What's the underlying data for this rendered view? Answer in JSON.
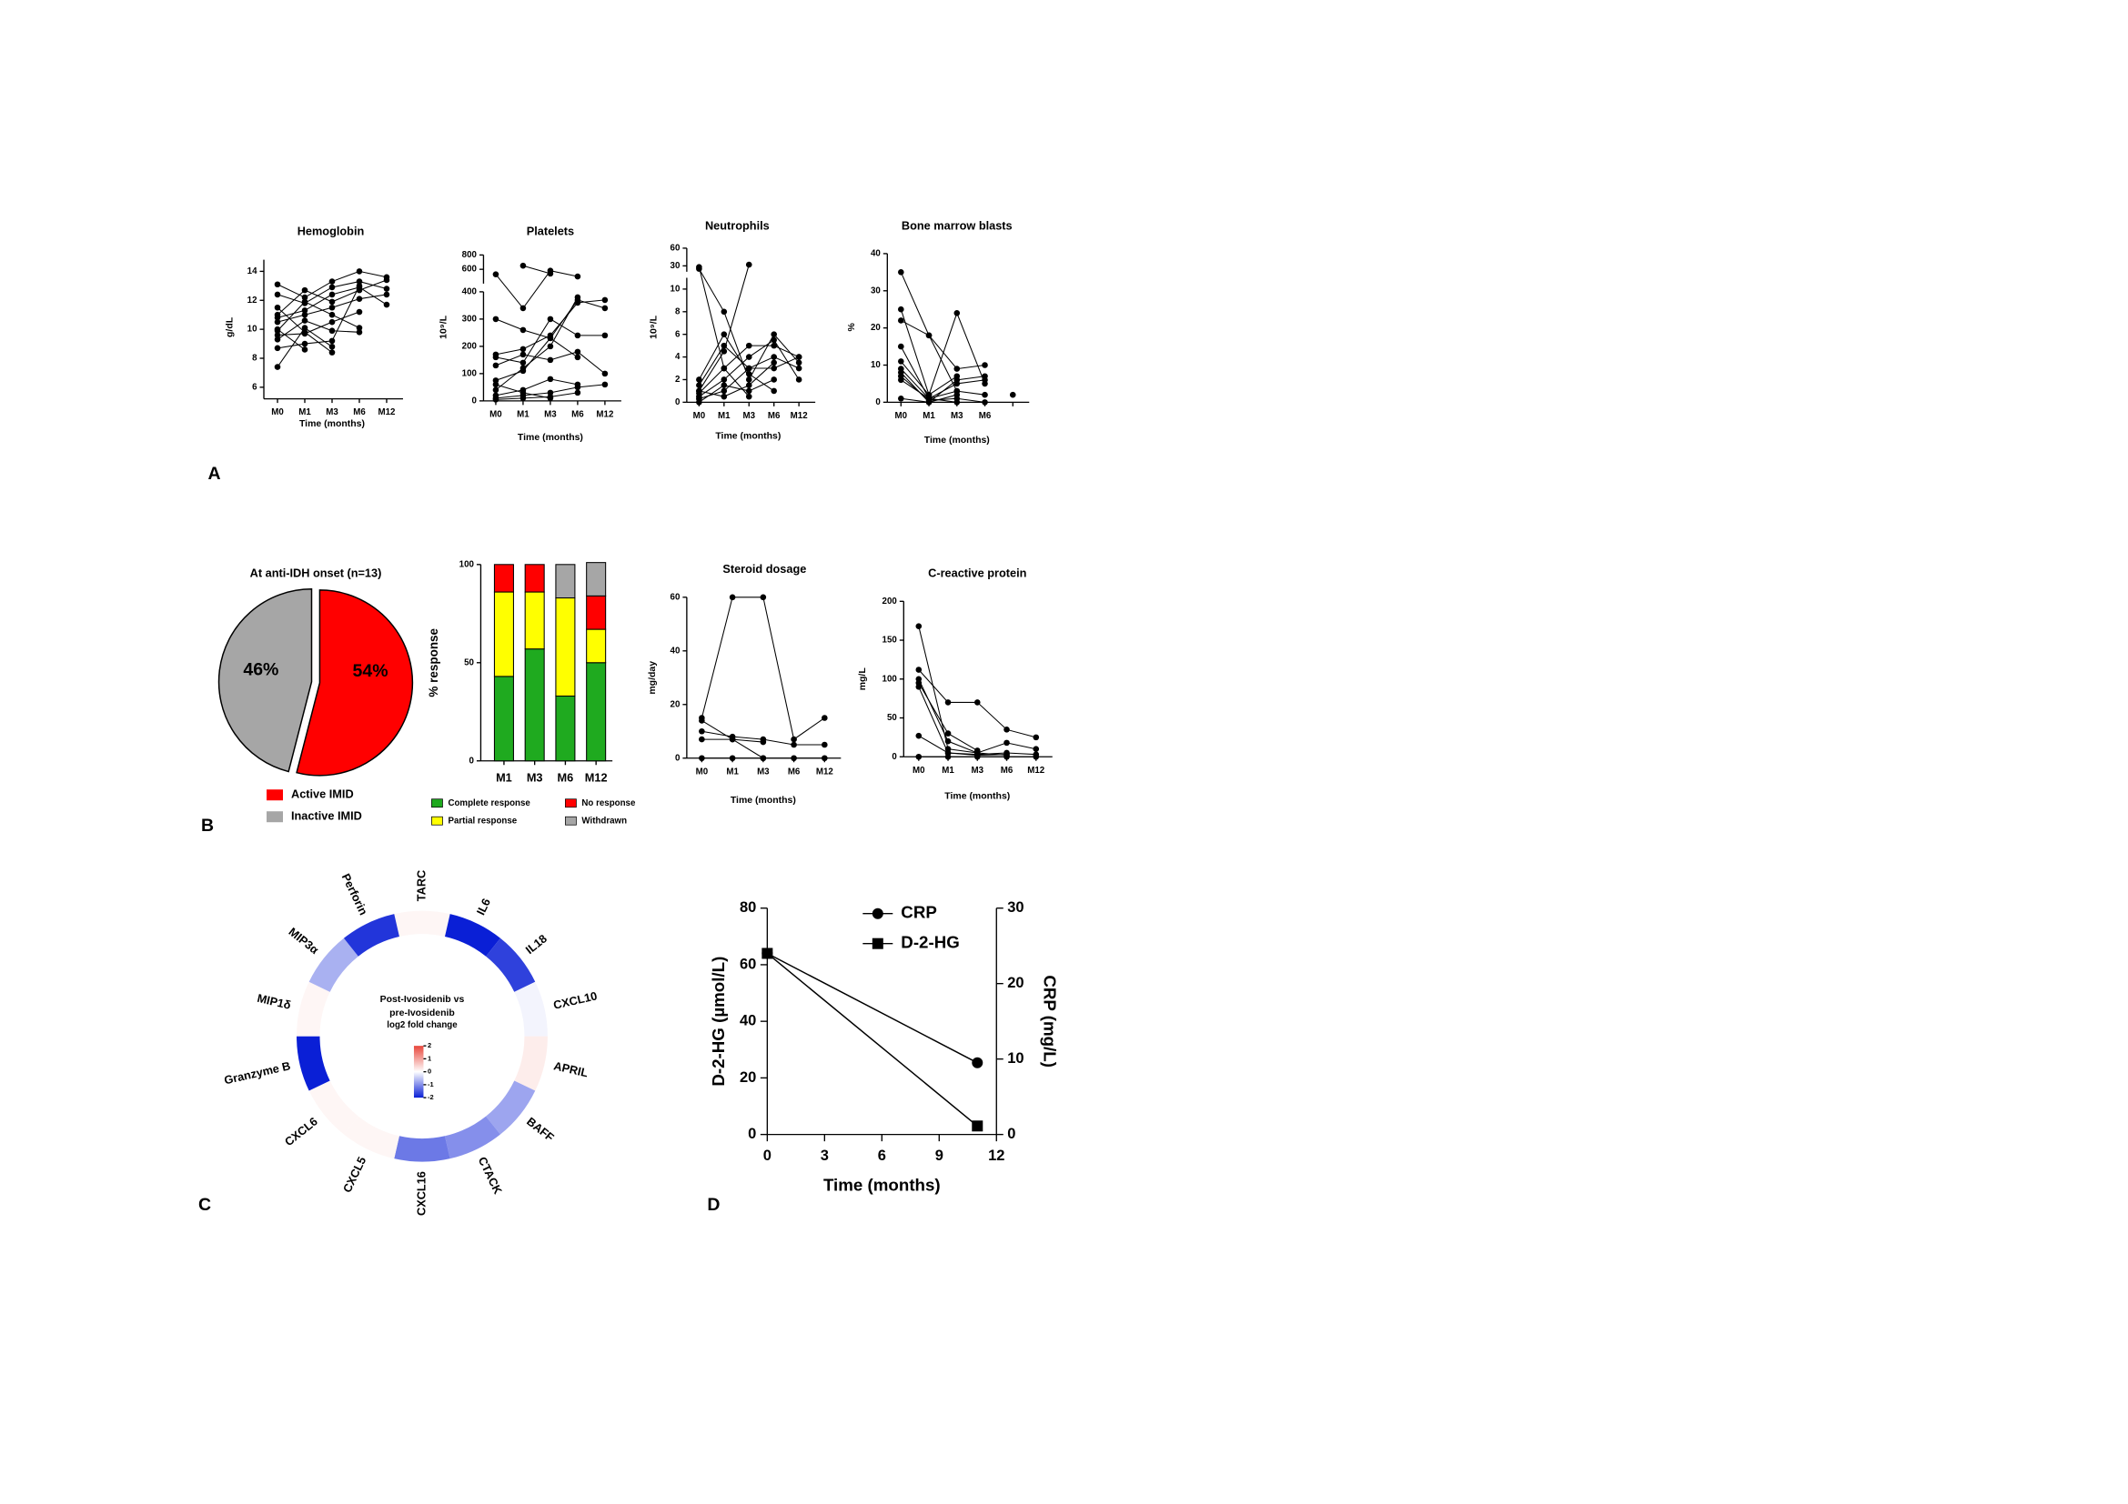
{
  "panels": [
    "A",
    "B",
    "C",
    "D"
  ],
  "chart_data": [
    {
      "type": "line",
      "title": "Hemoglobin",
      "xlabel": "Time (months)",
      "ylabel": "g/dL",
      "categories": [
        "M0",
        "M1",
        "M3",
        "M6",
        "M12"
      ],
      "ylim": [
        5.2,
        14.8
      ],
      "yticks": [
        6,
        8,
        10,
        12,
        14
      ],
      "color": "#000000",
      "series": [
        {
          "values": [
            13.1,
            12.2,
            13.3,
            14.0,
            13.6
          ]
        },
        {
          "values": [
            12.4,
            11.8,
            12.9,
            13.3,
            12.8
          ]
        },
        {
          "values": [
            11.0,
            12.7,
            11.9,
            12.7,
            13.4
          ]
        },
        {
          "values": [
            10.8,
            11.3,
            12.4,
            12.9,
            11.7
          ]
        },
        {
          "values": [
            10.5,
            11.0,
            11.5,
            12.1,
            12.4
          ]
        },
        {
          "values": [
            9.9,
            11.9,
            11.0,
            10.1,
            null
          ]
        },
        {
          "values": [
            9.6,
            9.7,
            10.5,
            11.2,
            null
          ]
        },
        {
          "values": [
            9.3,
            10.6,
            9.9,
            9.8,
            null
          ]
        },
        {
          "values": [
            8.7,
            9.0,
            9.2,
            13.0,
            null
          ]
        },
        {
          "values": [
            7.4,
            10.1,
            8.8,
            null,
            null
          ]
        },
        {
          "values": [
            11.5,
            9.8,
            8.4,
            null,
            null
          ]
        },
        {
          "values": [
            10.0,
            8.6,
            null,
            null,
            null
          ]
        }
      ]
    },
    {
      "type": "line",
      "title": "Platelets",
      "xlabel": "Time (months)",
      "ylabel": "10⁹/L",
      "categories": [
        "M0",
        "M1",
        "M3",
        "M6",
        "M12"
      ],
      "ylim_segments": [
        [
          0,
          400
        ],
        [
          400,
          800
        ]
      ],
      "yticks": [
        0,
        100,
        200,
        300,
        400,
        600,
        800
      ],
      "color": "#000000",
      "series": [
        {
          "values": [
            530,
            340,
            580,
            500,
            null
          ]
        },
        {
          "values": [
            null,
            650,
            540,
            null,
            null
          ]
        },
        {
          "values": [
            300,
            260,
            230,
            370,
            340
          ]
        },
        {
          "values": [
            170,
            190,
            240,
            360,
            370
          ]
        },
        {
          "values": [
            160,
            140,
            300,
            240,
            240
          ]
        },
        {
          "values": [
            130,
            170,
            150,
            180,
            100
          ]
        },
        {
          "values": [
            75,
            110,
            230,
            160,
            null
          ]
        },
        {
          "values": [
            40,
            120,
            200,
            380,
            null
          ]
        },
        {
          "values": [
            20,
            40,
            80,
            60,
            null
          ]
        },
        {
          "values": [
            10,
            20,
            30,
            50,
            60
          ]
        },
        {
          "values": [
            5,
            10,
            15,
            30,
            null
          ]
        },
        {
          "values": [
            60,
            30,
            10,
            null,
            null
          ]
        }
      ]
    },
    {
      "type": "line",
      "title": "Neutrophils",
      "xlabel": "Time (months)",
      "ylabel": "10⁹/L",
      "categories": [
        "M0",
        "M1",
        "M3",
        "M6",
        "M12"
      ],
      "ylim_segments": [
        [
          0,
          11
        ],
        [
          20,
          60
        ]
      ],
      "yticks": [
        0,
        2,
        4,
        6,
        8,
        10,
        30,
        60
      ],
      "color": "#000000",
      "series": [
        {
          "values": [
            28,
            3,
            5,
            5,
            4
          ]
        },
        {
          "values": [
            25,
            8,
            2,
            6,
            3.5
          ]
        },
        {
          "values": [
            1.5,
            5,
            3,
            4,
            3
          ]
        },
        {
          "values": [
            1,
            4.5,
            32,
            null,
            null
          ]
        },
        {
          "values": [
            0.5,
            2,
            4,
            5.5,
            2
          ]
        },
        {
          "values": [
            0.3,
            1,
            3,
            3,
            4
          ]
        },
        {
          "values": [
            0,
            1.5,
            1,
            2,
            null
          ]
        },
        {
          "values": [
            2,
            6,
            2.5,
            1,
            null
          ]
        },
        {
          "values": [
            1,
            0.5,
            1.5,
            3.5,
            null
          ]
        },
        {
          "values": [
            0.8,
            3,
            0.5,
            null,
            null
          ]
        }
      ]
    },
    {
      "type": "line",
      "title": "Bone marrow blasts",
      "xlabel": "Time (months)",
      "ylabel": "%",
      "categories": [
        "M0",
        "M1",
        "M3",
        "M6",
        null
      ],
      "ylim": [
        0,
        40
      ],
      "yticks": [
        0,
        10,
        20,
        30,
        40
      ],
      "color": "#000000",
      "series": [
        {
          "values": [
            35,
            18,
            9,
            10,
            null
          ]
        },
        {
          "values": [
            25,
            2,
            24,
            5,
            null
          ]
        },
        {
          "values": [
            22,
            18,
            3,
            null,
            null
          ]
        },
        {
          "values": [
            15,
            1,
            5,
            6,
            null
          ]
        },
        {
          "values": [
            11,
            2,
            7,
            null,
            null
          ]
        },
        {
          "values": [
            9,
            1,
            3,
            2,
            null
          ]
        },
        {
          "values": [
            7,
            0.5,
            1,
            0,
            null
          ]
        },
        {
          "values": [
            6,
            1,
            0,
            null,
            null
          ]
        },
        {
          "values": [
            1,
            0,
            2,
            null,
            null
          ]
        },
        {
          "values": [
            8,
            0,
            6,
            7,
            null
          ]
        },
        {
          "values": [
            null,
            null,
            null,
            null,
            2
          ]
        }
      ]
    },
    {
      "type": "pie",
      "title": "At anti-IDH onset (n=13)",
      "categories": [
        "Active IMID",
        "Inactive IMID"
      ],
      "values": [
        54,
        46
      ],
      "value_labels": [
        "54%",
        "46%"
      ],
      "colors": [
        "#ff0000",
        "#a6a6a6"
      ],
      "explode": [
        true,
        false
      ]
    },
    {
      "type": "stacked_bar",
      "ylabel": "% response",
      "categories": [
        "M1",
        "M3",
        "M6",
        "M12"
      ],
      "ylim": [
        0,
        100
      ],
      "yticks": [
        0,
        50,
        100
      ],
      "series": [
        {
          "name": "Complete response",
          "color": "#1faa1f",
          "values": [
            43,
            57,
            33,
            50
          ]
        },
        {
          "name": "Partial response",
          "color": "#ffff00",
          "values": [
            43,
            29,
            50,
            17
          ]
        },
        {
          "name": "No response",
          "color": "#ff0000",
          "values": [
            14,
            14,
            0,
            17
          ]
        },
        {
          "name": "Withdrawn",
          "color": "#a6a6a6",
          "values": [
            0,
            0,
            17,
            17
          ]
        }
      ]
    },
    {
      "type": "line",
      "title": "Steroid dosage",
      "xlabel": "Time (months)",
      "ylabel": "mg/day",
      "categories": [
        "M0",
        "M1",
        "M3",
        "M6",
        "M12"
      ],
      "ylim": [
        0,
        60
      ],
      "yticks": [
        0,
        20,
        40,
        60
      ],
      "color": "#000000",
      "series": [
        {
          "values": [
            15,
            60,
            60,
            7,
            15
          ]
        },
        {
          "values": [
            10,
            8,
            7,
            5,
            5
          ]
        },
        {
          "values": [
            7,
            7,
            6,
            null,
            null
          ]
        },
        {
          "values": [
            0,
            0,
            0,
            0,
            0
          ]
        },
        {
          "values": [
            14,
            7,
            0,
            null,
            null
          ]
        }
      ]
    },
    {
      "type": "line",
      "title": "C-reactive protein",
      "xlabel": "Time (months)",
      "ylabel": "mg/L",
      "categories": [
        "M0",
        "M1",
        "M3",
        "M6",
        "M12"
      ],
      "ylim": [
        0,
        200
      ],
      "yticks": [
        0,
        50,
        100,
        150,
        200
      ],
      "color": "#000000",
      "series": [
        {
          "values": [
            168,
            10,
            5,
            2,
            null
          ]
        },
        {
          "values": [
            112,
            70,
            70,
            35,
            25
          ]
        },
        {
          "values": [
            100,
            20,
            5,
            18,
            10
          ]
        },
        {
          "values": [
            95,
            30,
            8,
            null,
            null
          ]
        },
        {
          "values": [
            90,
            5,
            3,
            5,
            3
          ]
        },
        {
          "values": [
            27,
            5,
            2,
            3,
            null
          ]
        },
        {
          "values": [
            0,
            0,
            0,
            0,
            0
          ]
        }
      ]
    },
    {
      "type": "radial_heatmap",
      "title_lines": [
        "Post-Ivosidenib vs",
        "pre-Ivosidenib"
      ],
      "subtitle": "log2 fold change",
      "categories": [
        "TARC",
        "IL6",
        "IL18",
        "CXCL10",
        "APRIL",
        "BAFF",
        "CTACK",
        "CXCL16",
        "CXCL5",
        "CXCL6",
        "Granzyme B",
        "MIP1δ",
        "MIP3α",
        "Perforin"
      ],
      "values": [
        0.1,
        -2,
        -1.7,
        -0.1,
        0.2,
        -0.8,
        -1,
        -1.2,
        0.1,
        0.1,
        -2,
        0.1,
        -0.7,
        -1.8
      ],
      "clim": [
        -2,
        2
      ],
      "colorscale": [
        "#0a1fd6",
        "#ffffff",
        "#e8473c"
      ],
      "colorbar_ticks": [
        2,
        1,
        0,
        -1,
        -2
      ]
    },
    {
      "type": "dual_line",
      "xlabel": "Time (months)",
      "ylabel": "D-2-HG (µmol/L)",
      "y2label": "CRP (mg/L)",
      "xlim": [
        0,
        12
      ],
      "xticks": [
        0,
        3,
        6,
        9,
        12
      ],
      "ylim": [
        0,
        80
      ],
      "yticks": [
        0,
        20,
        40,
        60,
        80
      ],
      "y2lim": [
        0,
        30
      ],
      "y2ticks": [
        0,
        10,
        20,
        30
      ],
      "x": [
        0,
        11
      ],
      "color": "#000000",
      "series": [
        {
          "name": "CRP",
          "marker": "circle",
          "axis": "y2",
          "values": [
            24,
            9.5
          ]
        },
        {
          "name": "D-2-HG",
          "marker": "square",
          "axis": "y",
          "values": [
            64,
            3
          ]
        }
      ]
    }
  ]
}
